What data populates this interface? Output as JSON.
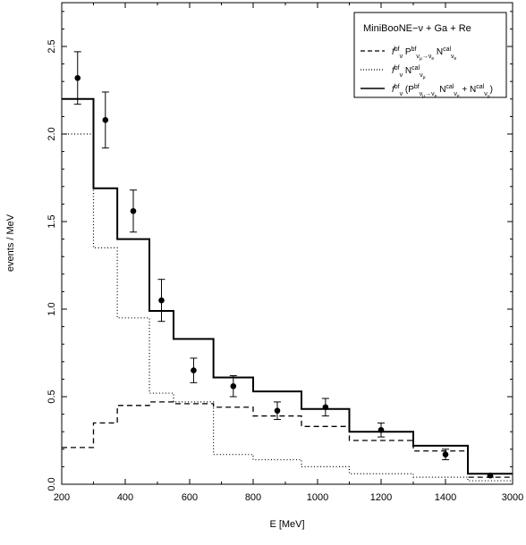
{
  "chart_data": {
    "type": "line",
    "xlabel": "E    [MeV]",
    "ylabel": "events / MeV",
    "ylim": [
      0,
      2.75
    ],
    "x_ticks": [
      "200",
      "400",
      "600",
      "800",
      "1000",
      "1200",
      "1400",
      "3000"
    ],
    "y_ticks": [
      "0.0",
      "0.5",
      "1.0",
      "1.5",
      "2.0",
      "2.5"
    ],
    "bin_edges": [
      200,
      300,
      375,
      475,
      550,
      675,
      800,
      950,
      1100,
      1300,
      1500,
      3000
    ],
    "series": [
      {
        "style": "dashed",
        "values": [
          0.21,
          0.35,
          0.45,
          0.47,
          0.46,
          0.44,
          0.39,
          0.33,
          0.25,
          0.19,
          0.04
        ]
      },
      {
        "style": "dotted",
        "values": [
          2.0,
          1.35,
          0.95,
          0.52,
          0.47,
          0.17,
          0.14,
          0.1,
          0.06,
          0.04,
          0.02
        ]
      },
      {
        "style": "solid",
        "values": [
          2.2,
          1.69,
          1.4,
          0.99,
          0.83,
          0.61,
          0.53,
          0.43,
          0.3,
          0.22,
          0.06
        ]
      }
    ],
    "data_points": [
      {
        "x": 250,
        "y": 2.32,
        "err": 0.15
      },
      {
        "x": 337.5,
        "y": 2.08,
        "err": 0.16
      },
      {
        "x": 425,
        "y": 1.56,
        "err": 0.12
      },
      {
        "x": 512.5,
        "y": 1.05,
        "err": 0.12
      },
      {
        "x": 612.5,
        "y": 0.65,
        "err": 0.07
      },
      {
        "x": 737.5,
        "y": 0.56,
        "err": 0.06
      },
      {
        "x": 875,
        "y": 0.42,
        "err": 0.05
      },
      {
        "x": 1025,
        "y": 0.44,
        "err": 0.05
      },
      {
        "x": 1200,
        "y": 0.31,
        "err": 0.04
      },
      {
        "x": 1400,
        "y": 0.17,
        "err": 0.03
      },
      {
        "x": 2250,
        "y": 0.05,
        "err": 0.01
      }
    ],
    "legend": {
      "title": "MiniBooNE−ν + Ga + Re",
      "placement": "top-right"
    }
  }
}
